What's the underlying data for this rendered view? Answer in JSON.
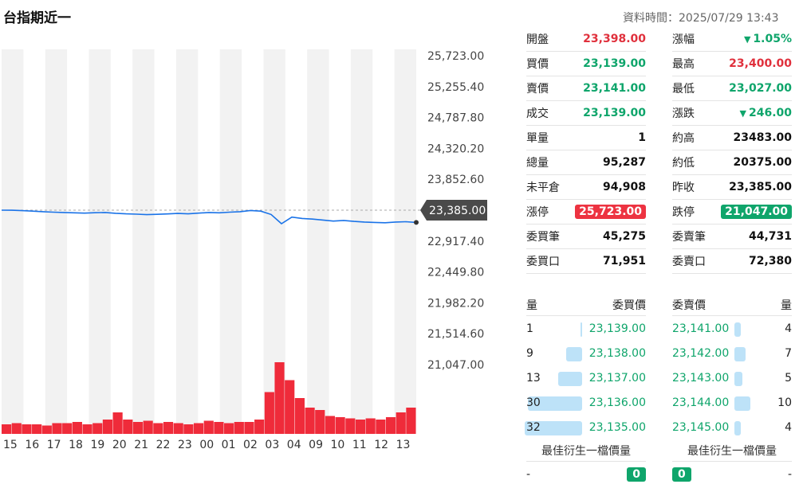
{
  "header": {
    "title": "台指期近一",
    "datatime_label": "資料時間：",
    "datatime": "2025/07/29 13:43"
  },
  "chart_data": {
    "type": "line",
    "y_ticks": [
      "25,723.00",
      "25,255.40",
      "24,787.80",
      "24,320.20",
      "23,852.60",
      "23,385.00",
      "22,917.40",
      "22,449.80",
      "21,982.20",
      "21,514.60",
      "21,047.00"
    ],
    "y_range": [
      21047.0,
      25723.0
    ],
    "x_ticks": [
      "15",
      "16",
      "17",
      "18",
      "19",
      "20",
      "21",
      "22",
      "23",
      "00",
      "01",
      "02",
      "03",
      "04",
      "09",
      "10",
      "11",
      "12",
      "13"
    ],
    "reference_price": 23385.0,
    "reference_label": "23,385.00",
    "price_series": [
      23385,
      23384,
      23378,
      23370,
      23362,
      23355,
      23350,
      23345,
      23340,
      23346,
      23350,
      23338,
      23330,
      23325,
      23318,
      23322,
      23328,
      23335,
      23330,
      23340,
      23350,
      23345,
      23355,
      23362,
      23380,
      23370,
      23320,
      23180,
      23280,
      23260,
      23250,
      23235,
      23220,
      23230,
      23215,
      23205,
      23200,
      23195,
      23205,
      23210,
      23200
    ],
    "volume_series": [
      8,
      9,
      8,
      8,
      7,
      9,
      9,
      10,
      8,
      9,
      12,
      18,
      12,
      10,
      11,
      9,
      10,
      9,
      8,
      9,
      11,
      10,
      9,
      10,
      10,
      12,
      35,
      60,
      45,
      30,
      22,
      20,
      15,
      14,
      13,
      12,
      13,
      12,
      14,
      18,
      22
    ]
  },
  "quote": {
    "left": [
      {
        "label": "開盤",
        "value": "23,398.00",
        "style": "red"
      },
      {
        "label": "買價",
        "value": "23,139.00",
        "style": "green"
      },
      {
        "label": "賣價",
        "value": "23,141.00",
        "style": "green"
      },
      {
        "label": "成交",
        "value": "23,139.00",
        "style": "green"
      },
      {
        "label": "單量",
        "value": "1",
        "style": ""
      },
      {
        "label": "總量",
        "value": "95,287",
        "style": ""
      },
      {
        "label": "未平倉",
        "value": "94,908",
        "style": ""
      },
      {
        "label": "漲停",
        "value": "25,723.00",
        "style": "pill-red"
      },
      {
        "label": "委買筆",
        "value": "45,275",
        "style": ""
      },
      {
        "label": "委買口",
        "value": "71,951",
        "style": ""
      }
    ],
    "right": [
      {
        "label": "漲幅",
        "value": "1.05%",
        "style": "green",
        "arrow": "▼"
      },
      {
        "label": "最高",
        "value": "23,400.00",
        "style": "red"
      },
      {
        "label": "最低",
        "value": "23,027.00",
        "style": "green"
      },
      {
        "label": "漲跌",
        "value": "246.00",
        "style": "green",
        "arrow": "▼"
      },
      {
        "label": "約高",
        "value": "23483.00",
        "style": ""
      },
      {
        "label": "約低",
        "value": "20375.00",
        "style": ""
      },
      {
        "label": "昨收",
        "value": "23,385.00",
        "style": ""
      },
      {
        "label": "跌停",
        "value": "21,047.00",
        "style": "pill-green"
      },
      {
        "label": "委賣筆",
        "value": "44,731",
        "style": ""
      },
      {
        "label": "委賣口",
        "value": "72,380",
        "style": ""
      }
    ]
  },
  "orderbook": {
    "bid_header_qty": "量",
    "bid_header_price": "委買價",
    "ask_header_price": "委賣價",
    "ask_header_qty": "量",
    "bids": [
      {
        "qty": "1",
        "price": "23,139.00",
        "level": 0.03
      },
      {
        "qty": "9",
        "price": "23,138.00",
        "level": 0.28
      },
      {
        "qty": "13",
        "price": "23,137.00",
        "level": 0.41
      },
      {
        "qty": "30",
        "price": "23,136.00",
        "level": 0.94
      },
      {
        "qty": "32",
        "price": "23,135.00",
        "level": 1.0
      }
    ],
    "asks": [
      {
        "price": "23,141.00",
        "qty": "4",
        "level": 0.4
      },
      {
        "price": "23,142.00",
        "qty": "7",
        "level": 0.7
      },
      {
        "price": "23,143.00",
        "qty": "5",
        "level": 0.5
      },
      {
        "price": "23,144.00",
        "qty": "10",
        "level": 1.0
      },
      {
        "price": "23,145.00",
        "qty": "4",
        "level": 0.4
      }
    ],
    "best_bid_label": "最佳衍生一檔價量",
    "best_ask_label": "最佳衍生一檔價量",
    "best_bid_price": "-",
    "best_bid_qty": "0",
    "best_ask_qty": "0",
    "best_ask_price": "-"
  },
  "colors": {
    "price_line": "#1a73e8",
    "volume": "#ef2b3a",
    "band": "#f2f2f2",
    "up": "#e0303c",
    "down": "#0fa56b"
  }
}
